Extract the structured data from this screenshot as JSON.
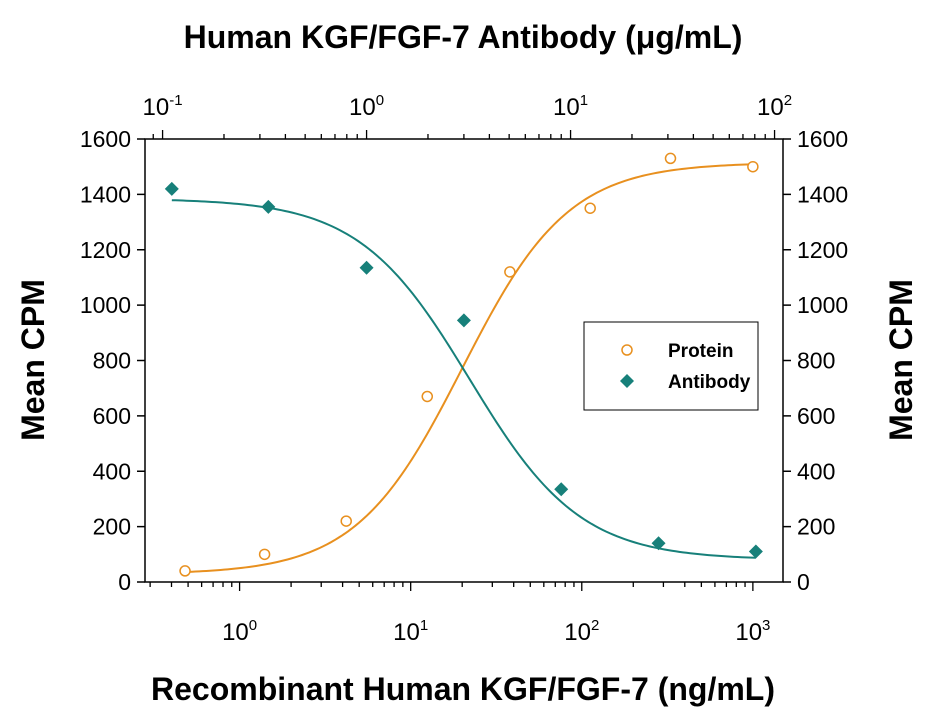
{
  "chart_data": {
    "type": "scatter",
    "top_title": "Human KGF/FGF-7 Antibody (μg/mL)",
    "xlabel": "Recombinant Human KGF/FGF-7 (ng/mL)",
    "ylabel_left": "Mean CPM",
    "ylabel_right": "Mean CPM",
    "ylim": [
      0,
      1600
    ],
    "y_ticks": [
      0,
      200,
      400,
      600,
      800,
      1000,
      1200,
      1400,
      1600
    ],
    "x_bottom": {
      "scale": "log",
      "range": [
        0.28,
        1500
      ],
      "tick_exponents": [
        0,
        1,
        2,
        3
      ]
    },
    "x_top": {
      "scale": "log",
      "range": [
        0.082,
        110
      ],
      "tick_exponents": [
        -1,
        0,
        1,
        2
      ]
    },
    "legend_position": "center-right",
    "series": [
      {
        "name": "Protein",
        "marker": "open-circle",
        "color": "#e8901f",
        "x_axis": "bottom",
        "points": [
          {
            "x": 0.48,
            "y": 40
          },
          {
            "x": 1.4,
            "y": 100
          },
          {
            "x": 4.2,
            "y": 220
          },
          {
            "x": 12.5,
            "y": 670
          },
          {
            "x": 38,
            "y": 1120
          },
          {
            "x": 112,
            "y": 1350
          },
          {
            "x": 330,
            "y": 1530
          },
          {
            "x": 1000,
            "y": 1500
          }
        ],
        "fit": {
          "bottom": 28,
          "top": 1515,
          "ec50": 20,
          "hill": 1.4
        }
      },
      {
        "name": "Antibody",
        "marker": "filled-diamond",
        "color": "#17807a",
        "x_axis": "top",
        "points": [
          {
            "x": 0.111,
            "y": 1420
          },
          {
            "x": 0.33,
            "y": 1355
          },
          {
            "x": 1.0,
            "y": 1135
          },
          {
            "x": 3.0,
            "y": 945
          },
          {
            "x": 9.0,
            "y": 335
          },
          {
            "x": 27,
            "y": 140
          },
          {
            "x": 81,
            "y": 110
          }
        ],
        "fit": {
          "bottom": 80,
          "top": 1385,
          "ec50": 3.2,
          "hill": 1.6
        }
      }
    ]
  },
  "colors": {
    "protein": "#e8901f",
    "antibody": "#17807a",
    "axis": "#000000"
  }
}
